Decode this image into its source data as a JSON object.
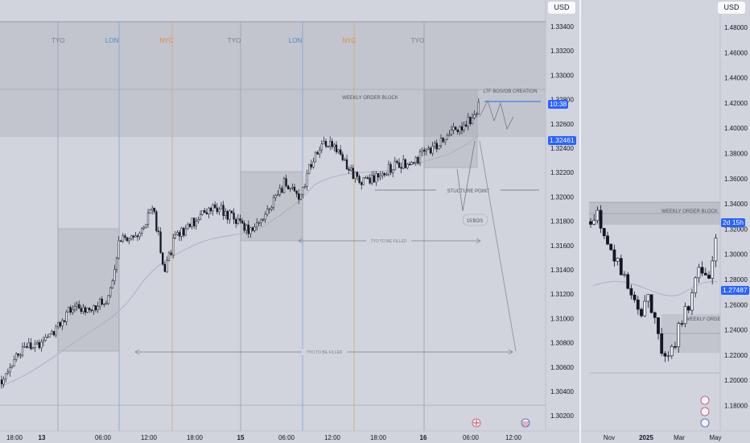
{
  "left_chart": {
    "currency_label": "USD",
    "price_axis": [
      "1.33400",
      "1.33200",
      "1.33000",
      "1.32800",
      "1.32600",
      "1.32400",
      "1.32200",
      "1.32000",
      "1.31800",
      "1.31600",
      "1.31400",
      "1.31200",
      "1.31000",
      "1.30800",
      "1.30600",
      "1.30400",
      "1.30200"
    ],
    "time_axis": [
      "18:00",
      "13",
      "06:00",
      "12:00",
      "18:00",
      "15",
      "06:00",
      "12:00",
      "18:00",
      "16",
      "06:00",
      "12:00"
    ],
    "sessions": [
      {
        "label": "TYO",
        "color": "#787b86"
      },
      {
        "label": "LON",
        "color": "#4f86c6"
      },
      {
        "label": "NYC",
        "color": "#e08a3a"
      },
      {
        "label": "TYO",
        "color": "#787b86"
      },
      {
        "label": "LON",
        "color": "#4f86c6"
      },
      {
        "label": "NYC",
        "color": "#e08a3a"
      },
      {
        "label": "TYO",
        "color": "#787b86"
      }
    ],
    "annotations": {
      "weekly_order_block": "WEEKLY ORDER BLOCK",
      "ltf_bos": "LTF BOS/OB CREATION",
      "structure_point": "STUCTURE POINT",
      "bos_15": "15'BOS",
      "tyo_filled_1": "TYO TO BE  FILLED",
      "tyo_filled_2": "TYO TO BE  FILLED"
    },
    "price_labels": {
      "countdown": "10:38",
      "last": "1.32461"
    },
    "accent": "#2962ff"
  },
  "right_chart": {
    "currency_label": "USD",
    "price_axis": [
      "1.48000",
      "1.46000",
      "1.44000",
      "1.42000",
      "1.40000",
      "1.38000",
      "1.36000",
      "1.34000",
      "1.32000",
      "1.30000",
      "1.28000",
      "1.26000",
      "1.24000",
      "1.22000",
      "1.20000",
      "1.18000"
    ],
    "time_axis": [
      "Nov",
      "2025",
      "Mar",
      "May"
    ],
    "annotations": {
      "weekly_order_block": "WEEKLY ORDER BLOCK",
      "weekly_order_2": "WEEKLY ORDER"
    },
    "price_labels": {
      "countdown": "2d 15h",
      "last": "1.27487"
    }
  }
}
